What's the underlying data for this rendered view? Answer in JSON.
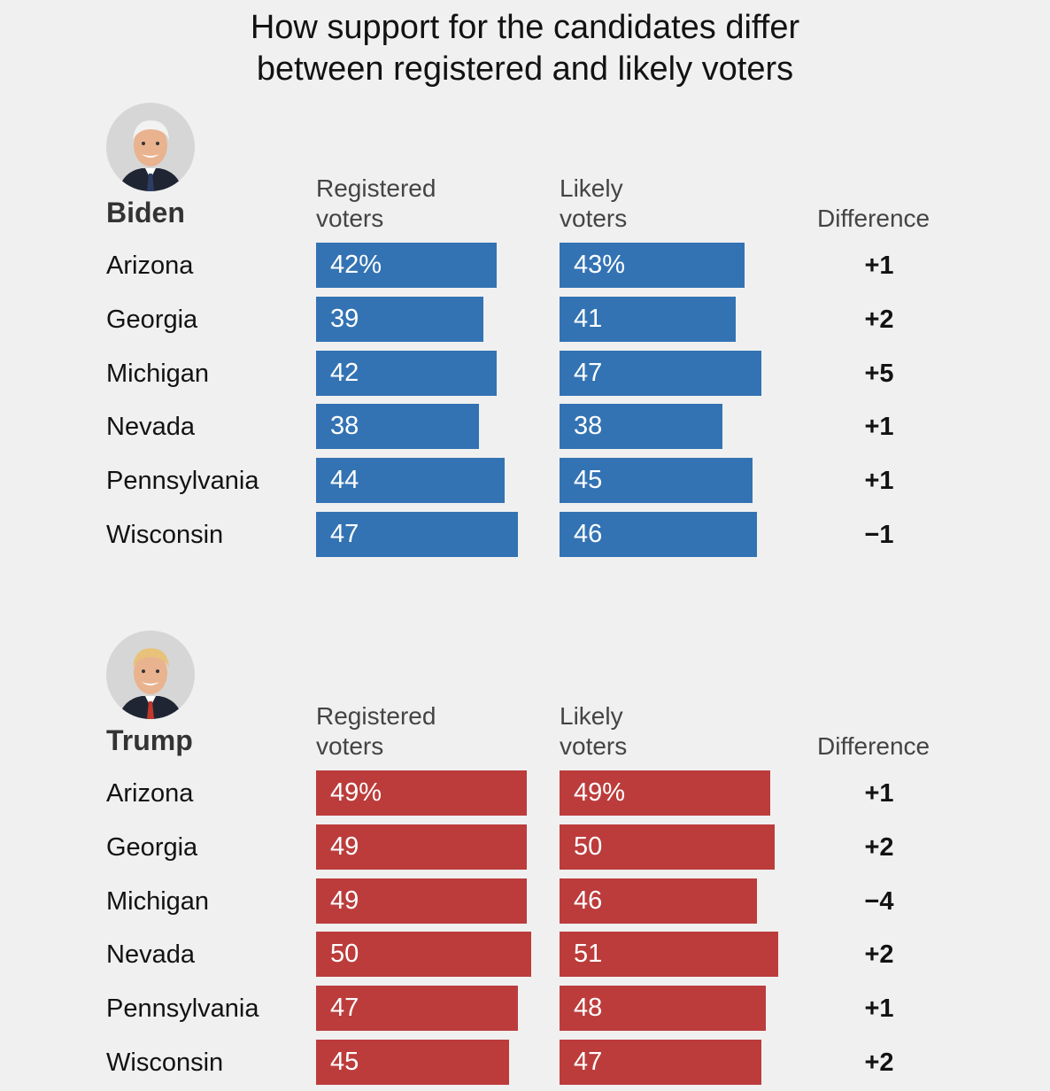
{
  "title": {
    "line1": "How support for the candidates differ",
    "line2": "between registered and likely voters"
  },
  "colors": {
    "biden": "#3373b3",
    "trump": "#bc3c3c"
  },
  "chart_data": [
    {
      "type": "bar",
      "candidate": "Biden",
      "portrait": "biden-portrait",
      "columns": {
        "registered_line1": "Registered",
        "registered_line2": "voters",
        "likely_line1": "Likely",
        "likely_line2": "voters",
        "difference": "Difference"
      },
      "categories": [
        "Arizona",
        "Georgia",
        "Michigan",
        "Nevada",
        "Pennsylvania",
        "Wisconsin"
      ],
      "series": [
        {
          "name": "Registered voters",
          "values": [
            42,
            39,
            42,
            38,
            44,
            47
          ],
          "labels": [
            "42%",
            "39",
            "42",
            "38",
            "44",
            "47"
          ]
        },
        {
          "name": "Likely voters",
          "values": [
            43,
            41,
            47,
            38,
            45,
            46
          ],
          "labels": [
            "43%",
            "41",
            "47",
            "38",
            "45",
            "46"
          ]
        }
      ],
      "differences": [
        "+1",
        "+2",
        "+5",
        "+1",
        "+1",
        "−1"
      ]
    },
    {
      "type": "bar",
      "candidate": "Trump",
      "portrait": "trump-portrait",
      "columns": {
        "registered_line1": "Registered",
        "registered_line2": "voters",
        "likely_line1": "Likely",
        "likely_line2": "voters",
        "difference": "Difference"
      },
      "categories": [
        "Arizona",
        "Georgia",
        "Michigan",
        "Nevada",
        "Pennsylvania",
        "Wisconsin"
      ],
      "series": [
        {
          "name": "Registered voters",
          "values": [
            49,
            49,
            49,
            50,
            47,
            45
          ],
          "labels": [
            "49%",
            "49",
            "49",
            "50",
            "47",
            "45"
          ]
        },
        {
          "name": "Likely voters",
          "values": [
            49,
            50,
            46,
            51,
            48,
            47
          ],
          "labels": [
            "49%",
            "50",
            "46",
            "51",
            "48",
            "47"
          ]
        }
      ],
      "differences": [
        "+1",
        "+2",
        "−4",
        "+2",
        "+1",
        "+2"
      ]
    }
  ]
}
